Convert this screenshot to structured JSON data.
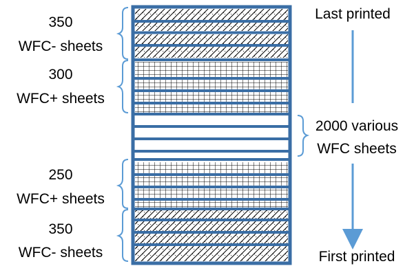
{
  "diagram": {
    "groups": [
      {
        "count": "350",
        "kind": "WFC- sheets",
        "pattern": "diagonal"
      },
      {
        "count": "300",
        "kind": "WFC+ sheets",
        "pattern": "grid"
      },
      {
        "count": "2000 various",
        "kind": "WFC sheets",
        "pattern": "plain"
      },
      {
        "count": "250",
        "kind": "WFC+ sheets",
        "pattern": "grid"
      },
      {
        "count": "350",
        "kind": "WFC- sheets",
        "pattern": "diagonal"
      }
    ],
    "top_label": "Last printed",
    "bottom_label": "First printed",
    "colors": {
      "frame": "#3a6ea5",
      "arrow": "#5b9bd5",
      "text": "#000000"
    }
  }
}
